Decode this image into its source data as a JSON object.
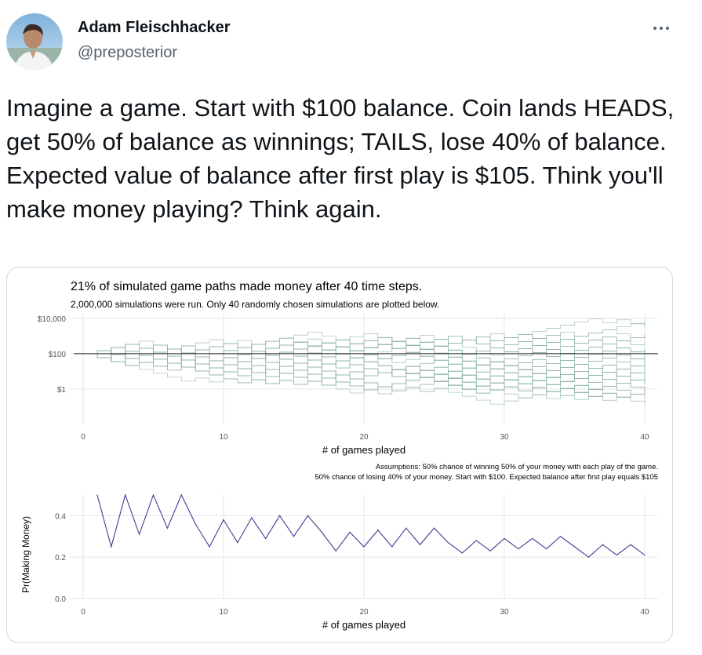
{
  "author": {
    "name": "Adam Fleischhacker",
    "handle": "@preposterior"
  },
  "menu": {
    "more_label": "More",
    "icon": "more-horizontal-icon"
  },
  "tweet": {
    "text": "Imagine a game.  Start with $100 balance.  Coin lands HEADS, get 50% of balance as winnings; TAILS, lose 40% of balance.  Expected value of balance after first play is $105.  Think you'll make money playing?  Think again."
  },
  "colors": {
    "paths": "#8fb5ad",
    "reference_line": "#222222",
    "prob_line": "#3b3f92",
    "grid": "#e6e6e6",
    "card_border": "#cfd9de"
  },
  "chart_data": [
    {
      "type": "line",
      "title": "21% of simulated game paths made money after 40 time steps.",
      "subtitle": "2,000,000 simulations were run.  Only 40 randomly chosen simulations are plotted below.",
      "xlabel": "# of games played",
      "ylabel": "",
      "xlim": [
        0,
        40
      ],
      "x_ticks": [
        0,
        10,
        20,
        30,
        40
      ],
      "y_scale": "log10",
      "y_range": [
        0.01,
        20000
      ],
      "y_ticks": [
        {
          "value": 10000,
          "label": "$10,000"
        },
        {
          "value": 100,
          "label": "$100"
        },
        {
          "value": 1,
          "label": "$1"
        }
      ],
      "reference_line": 100,
      "n_paths_plotted": 40,
      "start_balance": 100,
      "win_multiplier": 1.5,
      "loss_multiplier": 0.6,
      "steps": 40,
      "caption": [
        "Assumptions: 50% chance of winning 50% of your money with each play of the game.",
        "50% chance of losing 40% of your money. Start with $100. Expected balance after first play equals $105"
      ]
    },
    {
      "type": "line",
      "title": "",
      "xlabel": "# of games played",
      "ylabel": "Pr(Making Money)",
      "xlim": [
        0,
        40
      ],
      "ylim": [
        0,
        0.5
      ],
      "x_ticks": [
        0,
        10,
        20,
        30,
        40
      ],
      "y_ticks": [
        0.0,
        0.2,
        0.4
      ],
      "y_tick_labels": [
        "0.0",
        "0.2",
        "0.4"
      ],
      "x": [
        1,
        2,
        3,
        4,
        5,
        6,
        7,
        8,
        9,
        10,
        11,
        12,
        13,
        14,
        15,
        16,
        17,
        18,
        19,
        20,
        21,
        22,
        23,
        24,
        25,
        26,
        27,
        28,
        29,
        30,
        31,
        32,
        33,
        34,
        35,
        36,
        37,
        38,
        39,
        40
      ],
      "values": [
        0.5,
        0.25,
        0.5,
        0.31,
        0.5,
        0.34,
        0.5,
        0.36,
        0.25,
        0.38,
        0.27,
        0.39,
        0.29,
        0.4,
        0.3,
        0.4,
        0.32,
        0.23,
        0.32,
        0.25,
        0.33,
        0.25,
        0.34,
        0.26,
        0.34,
        0.27,
        0.22,
        0.28,
        0.23,
        0.29,
        0.24,
        0.29,
        0.24,
        0.3,
        0.25,
        0.2,
        0.26,
        0.21,
        0.26,
        0.21
      ]
    }
  ]
}
